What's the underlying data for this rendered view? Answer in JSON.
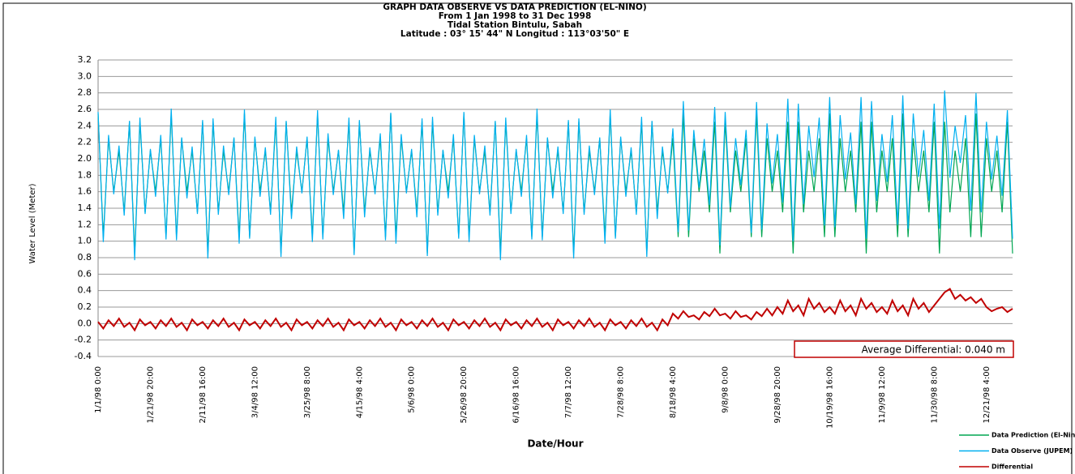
{
  "chart_data": {
    "type": "line",
    "title": [
      "GRAPH  DATA OBSERVE VS DATA PREDICTION (EL-NINO)",
      "From  1 Jan 1998 to 31  Dec 1998",
      "Tidal Station Bintulu, Sabah",
      "Latitude : 03° 15' 44\" N    Longitud : 113°03'50\" E"
    ],
    "y_label": "Water Level (Meter)",
    "x_label": "Date/Hour",
    "annotation": "Average Differential: 0.040 m",
    "ylim": [
      -0.4,
      3.2
    ],
    "yticks": [
      -0.4,
      -0.2,
      {
        "value": 0,
        "label": "0.0"
      },
      0.2,
      0.4,
      0.6,
      0.8,
      {
        "value": 1,
        "label": "1.0"
      },
      1.2,
      1.4,
      1.6,
      1.8,
      {
        "value": 2,
        "label": "2.0"
      },
      2.2,
      2.4,
      2.6,
      2.8,
      {
        "value": 3,
        "label": "3.0"
      },
      3.2
    ],
    "grid": true,
    "legend": "bottom-right",
    "categories": [
      "1/1/98 0:00",
      null,
      null,
      null,
      null,
      null,
      null,
      null,
      null,
      null,
      "1/21/98 20:00",
      null,
      null,
      null,
      null,
      null,
      null,
      null,
      null,
      null,
      "2/11/98 16:00",
      null,
      null,
      null,
      null,
      null,
      null,
      null,
      null,
      null,
      "3/4/98 12:00",
      null,
      null,
      null,
      null,
      null,
      null,
      null,
      null,
      null,
      "3/25/98 8:00",
      null,
      null,
      null,
      null,
      null,
      null,
      null,
      null,
      null,
      "4/15/98 4:00",
      null,
      null,
      null,
      null,
      null,
      null,
      null,
      null,
      null,
      "5/6/98 0:00",
      null,
      null,
      null,
      null,
      null,
      null,
      null,
      null,
      null,
      "5/26/98 20:00",
      null,
      null,
      null,
      null,
      null,
      null,
      null,
      null,
      null,
      "6/16/98 16:00",
      null,
      null,
      null,
      null,
      null,
      null,
      null,
      null,
      null,
      "7/7/98 12:00",
      null,
      null,
      null,
      null,
      null,
      null,
      null,
      null,
      null,
      "7/28/98 8:00",
      null,
      null,
      null,
      null,
      null,
      null,
      null,
      null,
      null,
      "8/18/98 4:00",
      null,
      null,
      null,
      null,
      null,
      null,
      null,
      null,
      null,
      "9/8/98 0:00",
      null,
      null,
      null,
      null,
      null,
      null,
      null,
      null,
      null,
      "9/28/98 20:00",
      null,
      null,
      null,
      null,
      null,
      null,
      null,
      null,
      null,
      "10/19/98 16:00",
      null,
      null,
      null,
      null,
      null,
      null,
      null,
      null,
      null,
      "11/9/98 12:00",
      null,
      null,
      null,
      null,
      null,
      null,
      null,
      null,
      null,
      "11/30/98 8:00",
      null,
      null,
      null,
      null,
      null,
      null,
      null,
      null,
      null,
      "12/21/98 4:00",
      null,
      null,
      null,
      null,
      null
    ],
    "series": [
      {
        "name": "Data Prediction (El-Nino)",
        "color": "#00a651",
        "values": [
          2.55,
          1.05,
          2.25,
          1.6,
          2.1,
          1.35,
          2.45,
          0.85,
          2.45,
          1.35,
          2.1,
          1.6,
          2.25,
          1.05,
          2.55,
          1.05,
          2.25,
          1.6,
          2.1,
          1.35,
          2.45,
          0.85,
          2.45,
          1.35,
          2.1,
          1.6,
          2.25,
          1.05,
          2.55,
          1.05,
          2.25,
          1.6,
          2.1,
          1.35,
          2.45,
          0.85,
          2.45,
          1.35,
          2.1,
          1.6,
          2.25,
          1.05,
          2.55,
          1.05,
          2.25,
          1.6,
          2.1,
          1.35,
          2.45,
          0.85,
          2.45,
          1.35,
          2.1,
          1.6,
          2.25,
          1.05,
          2.55,
          1.05,
          2.25,
          1.6,
          2.1,
          1.35,
          2.45,
          0.85,
          2.45,
          1.35,
          2.1,
          1.6,
          2.25,
          1.05,
          2.55,
          1.05,
          2.25,
          1.6,
          2.1,
          1.35,
          2.45,
          0.85,
          2.45,
          1.35,
          2.1,
          1.6,
          2.25,
          1.05,
          2.55,
          1.05,
          2.25,
          1.6,
          2.1,
          1.35,
          2.45,
          0.85,
          2.45,
          1.35,
          2.1,
          1.6,
          2.25,
          1.05,
          2.55,
          1.05,
          2.25,
          1.6,
          2.1,
          1.35,
          2.45,
          0.85,
          2.45,
          1.35,
          2.1,
          1.6,
          2.25,
          1.05,
          2.55,
          1.05,
          2.25,
          1.6,
          2.1,
          1.35,
          2.45,
          0.85,
          2.45,
          1.35,
          2.1,
          1.6,
          2.25,
          1.05,
          2.55,
          1.05,
          2.25,
          1.6,
          2.1,
          1.35,
          2.45,
          0.85,
          2.45,
          1.35,
          2.1,
          1.6,
          2.25,
          1.05,
          2.55,
          1.05,
          2.25,
          1.6,
          2.1,
          1.35,
          2.45,
          0.85,
          2.45,
          1.35,
          2.1,
          1.6,
          2.25,
          1.05,
          2.55,
          1.05,
          2.25,
          1.6,
          2.1,
          1.35,
          2.45,
          0.85,
          2.45,
          1.35,
          2.1,
          1.6,
          2.25,
          1.05,
          2.55,
          1.05,
          2.25,
          1.6,
          2.1,
          1.35,
          2.45,
          0.85
        ]
      },
      {
        "name": "Data Observe (JUPEM)",
        "color": "#00b0f0",
        "values": [
          2.57,
          0.99,
          2.29,
          1.57,
          2.16,
          1.31,
          2.46,
          0.77,
          2.5,
          1.33,
          2.12,
          1.54,
          2.29,
          1.02,
          2.61,
          1.01,
          2.26,
          1.52,
          2.15,
          1.33,
          2.47,
          0.79,
          2.49,
          1.32,
          2.16,
          1.56,
          2.26,
          0.97,
          2.6,
          1.03,
          2.27,
          1.54,
          2.14,
          1.32,
          2.51,
          0.81,
          2.46,
          1.27,
          2.15,
          1.58,
          2.27,
          0.99,
          2.59,
          1.02,
          2.31,
          1.56,
          2.11,
          1.27,
          2.5,
          0.83,
          2.47,
          1.29,
          2.14,
          1.57,
          2.31,
          1.01,
          2.56,
          0.97,
          2.3,
          1.58,
          2.12,
          1.29,
          2.49,
          0.82,
          2.51,
          1.31,
          2.11,
          1.52,
          2.3,
          1.03,
          2.57,
          0.99,
          2.29,
          1.57,
          2.16,
          1.31,
          2.46,
          0.77,
          2.5,
          1.33,
          2.12,
          1.54,
          2.29,
          1.02,
          2.61,
          1.01,
          2.26,
          1.52,
          2.15,
          1.33,
          2.47,
          0.79,
          2.49,
          1.32,
          2.16,
          1.56,
          2.26,
          0.97,
          2.6,
          1.03,
          2.27,
          1.54,
          2.14,
          1.32,
          2.51,
          0.81,
          2.46,
          1.27,
          2.15,
          1.58,
          2.37,
          1.11,
          2.7,
          1.13,
          2.35,
          1.65,
          2.24,
          1.44,
          2.63,
          0.95,
          2.57,
          1.41,
          2.25,
          1.68,
          2.35,
          1.1,
          2.69,
          1.14,
          2.43,
          1.7,
          2.3,
          1.47,
          2.73,
          1.0,
          2.67,
          1.45,
          2.4,
          1.78,
          2.5,
          1.19,
          2.75,
          1.17,
          2.53,
          1.75,
          2.32,
          1.45,
          2.75,
          1.03,
          2.7,
          1.49,
          2.3,
          1.72,
          2.53,
          1.2,
          2.77,
          1.15,
          2.55,
          1.78,
          2.35,
          1.49,
          2.67,
          1.15,
          2.83,
          1.77,
          2.4,
          1.95,
          2.53,
          1.37,
          2.8,
          1.35,
          2.45,
          1.75,
          2.28,
          1.55,
          2.59,
          1.03
        ]
      },
      {
        "name": "Differential",
        "color": "#c00000",
        "values": [
          0.02,
          -0.06,
          0.04,
          -0.03,
          0.06,
          -0.04,
          0.01,
          -0.08,
          0.05,
          -0.02,
          0.02,
          -0.06,
          0.04,
          -0.03,
          0.06,
          -0.04,
          0.01,
          -0.08,
          0.05,
          -0.02,
          0.02,
          -0.06,
          0.04,
          -0.03,
          0.06,
          -0.04,
          0.01,
          -0.08,
          0.05,
          -0.02,
          0.02,
          -0.06,
          0.04,
          -0.03,
          0.06,
          -0.04,
          0.01,
          -0.08,
          0.05,
          -0.02,
          0.02,
          -0.06,
          0.04,
          -0.03,
          0.06,
          -0.04,
          0.01,
          -0.08,
          0.05,
          -0.02,
          0.02,
          -0.06,
          0.04,
          -0.03,
          0.06,
          -0.04,
          0.01,
          -0.08,
          0.05,
          -0.02,
          0.02,
          -0.06,
          0.04,
          -0.03,
          0.06,
          -0.04,
          0.01,
          -0.08,
          0.05,
          -0.02,
          0.02,
          -0.06,
          0.04,
          -0.03,
          0.06,
          -0.04,
          0.01,
          -0.08,
          0.05,
          -0.02,
          0.02,
          -0.06,
          0.04,
          -0.03,
          0.06,
          -0.04,
          0.01,
          -0.08,
          0.05,
          -0.02,
          0.02,
          -0.06,
          0.04,
          -0.03,
          0.06,
          -0.04,
          0.01,
          -0.08,
          0.05,
          -0.02,
          0.02,
          -0.06,
          0.04,
          -0.03,
          0.06,
          -0.04,
          0.01,
          -0.08,
          0.05,
          -0.02,
          0.12,
          0.06,
          0.15,
          0.08,
          0.1,
          0.05,
          0.14,
          0.09,
          0.18,
          0.1,
          0.12,
          0.06,
          0.15,
          0.08,
          0.1,
          0.05,
          0.14,
          0.09,
          0.18,
          0.1,
          0.2,
          0.12,
          0.28,
          0.15,
          0.22,
          0.1,
          0.3,
          0.18,
          0.25,
          0.14,
          0.2,
          0.12,
          0.28,
          0.15,
          0.22,
          0.1,
          0.3,
          0.18,
          0.25,
          0.14,
          0.2,
          0.12,
          0.28,
          0.15,
          0.22,
          0.1,
          0.3,
          0.18,
          0.25,
          0.14,
          0.22,
          0.3,
          0.38,
          0.42,
          0.3,
          0.35,
          0.28,
          0.32,
          0.25,
          0.3,
          0.2,
          0.15,
          0.18,
          0.2,
          0.14,
          0.18
        ]
      }
    ]
  }
}
